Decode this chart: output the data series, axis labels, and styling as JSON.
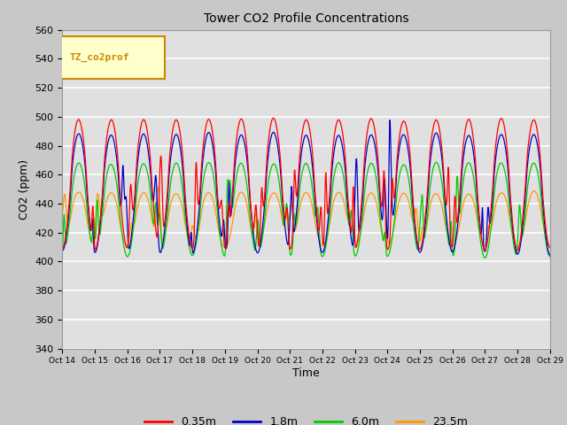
{
  "title": "Tower CO2 Profile Concentrations",
  "xlabel": "Time",
  "ylabel": "CO2 (ppm)",
  "ylim": [
    340,
    560
  ],
  "yticks": [
    340,
    360,
    380,
    400,
    420,
    440,
    460,
    480,
    500,
    520,
    540,
    560
  ],
  "fig_bg_color": "#c8c8c8",
  "plot_bg_color": "#e0e0e0",
  "grid_color": "#ffffff",
  "series": [
    "0.35m",
    "1.8m",
    "6.0m",
    "23.5m"
  ],
  "colors": [
    "#ff0000",
    "#0000cc",
    "#00cc00",
    "#ff9900"
  ],
  "legend_label": "TZ_co2prof",
  "legend_bg": "#ffffcc",
  "legend_border": "#cc8800",
  "x_tick_labels": [
    "Oct 14",
    "Oct 15",
    "Oct 16",
    "Oct 17",
    "Oct 18",
    "Oct 19",
    "Oct 20",
    "Oct 21",
    "Oct 22",
    "Oct 23",
    "Oct 24",
    "Oct 25",
    "Oct 26",
    "Oct 27",
    "Oct 28",
    "Oct 29"
  ],
  "n_points": 3000,
  "seed": 12345
}
